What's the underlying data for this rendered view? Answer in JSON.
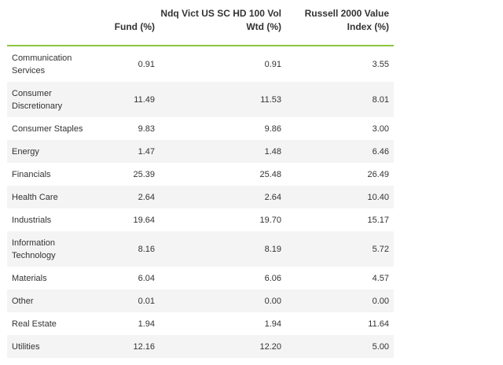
{
  "table": {
    "headers": {
      "sector": "",
      "fund": "Fund (%)",
      "ndq": "Ndq Vict US SC HD 100 Vol\nWtd (%)",
      "russell": "Russell 2000 Value\nIndex (%)"
    },
    "rows": [
      {
        "sector": "Communication Services",
        "fund": "0.91",
        "ndq": "0.91",
        "russell": "3.55"
      },
      {
        "sector": "Consumer Discretionary",
        "fund": "11.49",
        "ndq": "11.53",
        "russell": "8.01"
      },
      {
        "sector": "Consumer Staples",
        "fund": "9.83",
        "ndq": "9.86",
        "russell": "3.00"
      },
      {
        "sector": "Energy",
        "fund": "1.47",
        "ndq": "1.48",
        "russell": "6.46"
      },
      {
        "sector": "Financials",
        "fund": "25.39",
        "ndq": "25.48",
        "russell": "26.49"
      },
      {
        "sector": "Health Care",
        "fund": "2.64",
        "ndq": "2.64",
        "russell": "10.40"
      },
      {
        "sector": "Industrials",
        "fund": "19.64",
        "ndq": "19.70",
        "russell": "15.17"
      },
      {
        "sector": "Information Technology",
        "fund": "8.16",
        "ndq": "8.19",
        "russell": "5.72"
      },
      {
        "sector": "Materials",
        "fund": "6.04",
        "ndq": "6.06",
        "russell": "4.57"
      },
      {
        "sector": "Other",
        "fund": "0.01",
        "ndq": "0.00",
        "russell": "0.00"
      },
      {
        "sector": "Real Estate",
        "fund": "1.94",
        "ndq": "1.94",
        "russell": "11.64"
      },
      {
        "sector": "Utilities",
        "fund": "12.16",
        "ndq": "12.20",
        "russell": "5.00"
      }
    ]
  }
}
